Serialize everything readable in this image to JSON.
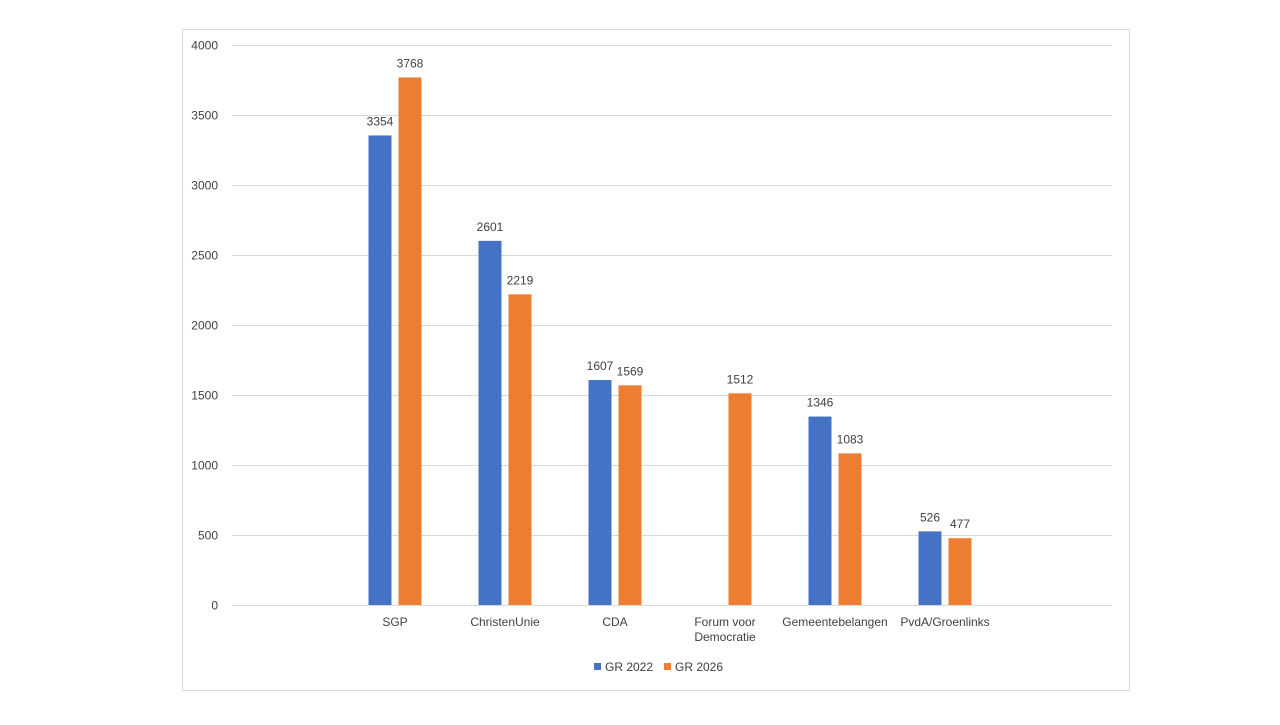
{
  "chart_data": {
    "type": "bar",
    "categories": [
      "SGP",
      "ChristenUnie",
      "CDA",
      "Forum voor Democratie",
      "Gemeentebelangen",
      "PvdA/Groenlinks"
    ],
    "category_lines": [
      [
        "SGP"
      ],
      [
        "ChristenUnie"
      ],
      [
        "CDA"
      ],
      [
        "Forum voor",
        "Democratie"
      ],
      [
        "Gemeentebelangen"
      ],
      [
        "PvdA/Groenlinks"
      ]
    ],
    "series": [
      {
        "name": "GR 2022",
        "color": "#4472C4",
        "values": [
          3354,
          2601,
          1607,
          null,
          1346,
          526
        ]
      },
      {
        "name": "GR 2026",
        "color": "#ED7D31",
        "values": [
          3768,
          2219,
          1569,
          1512,
          1083,
          477
        ]
      }
    ],
    "ylim": [
      0,
      4000
    ],
    "yticks": [
      0,
      500,
      1000,
      1500,
      2000,
      2500,
      3000,
      3500,
      4000
    ],
    "grid": true,
    "legend_position": "bottom",
    "title": "",
    "xlabel": "",
    "ylabel": "",
    "grid_color": "#D9D9D9",
    "border_color": "#D9D9D9"
  }
}
